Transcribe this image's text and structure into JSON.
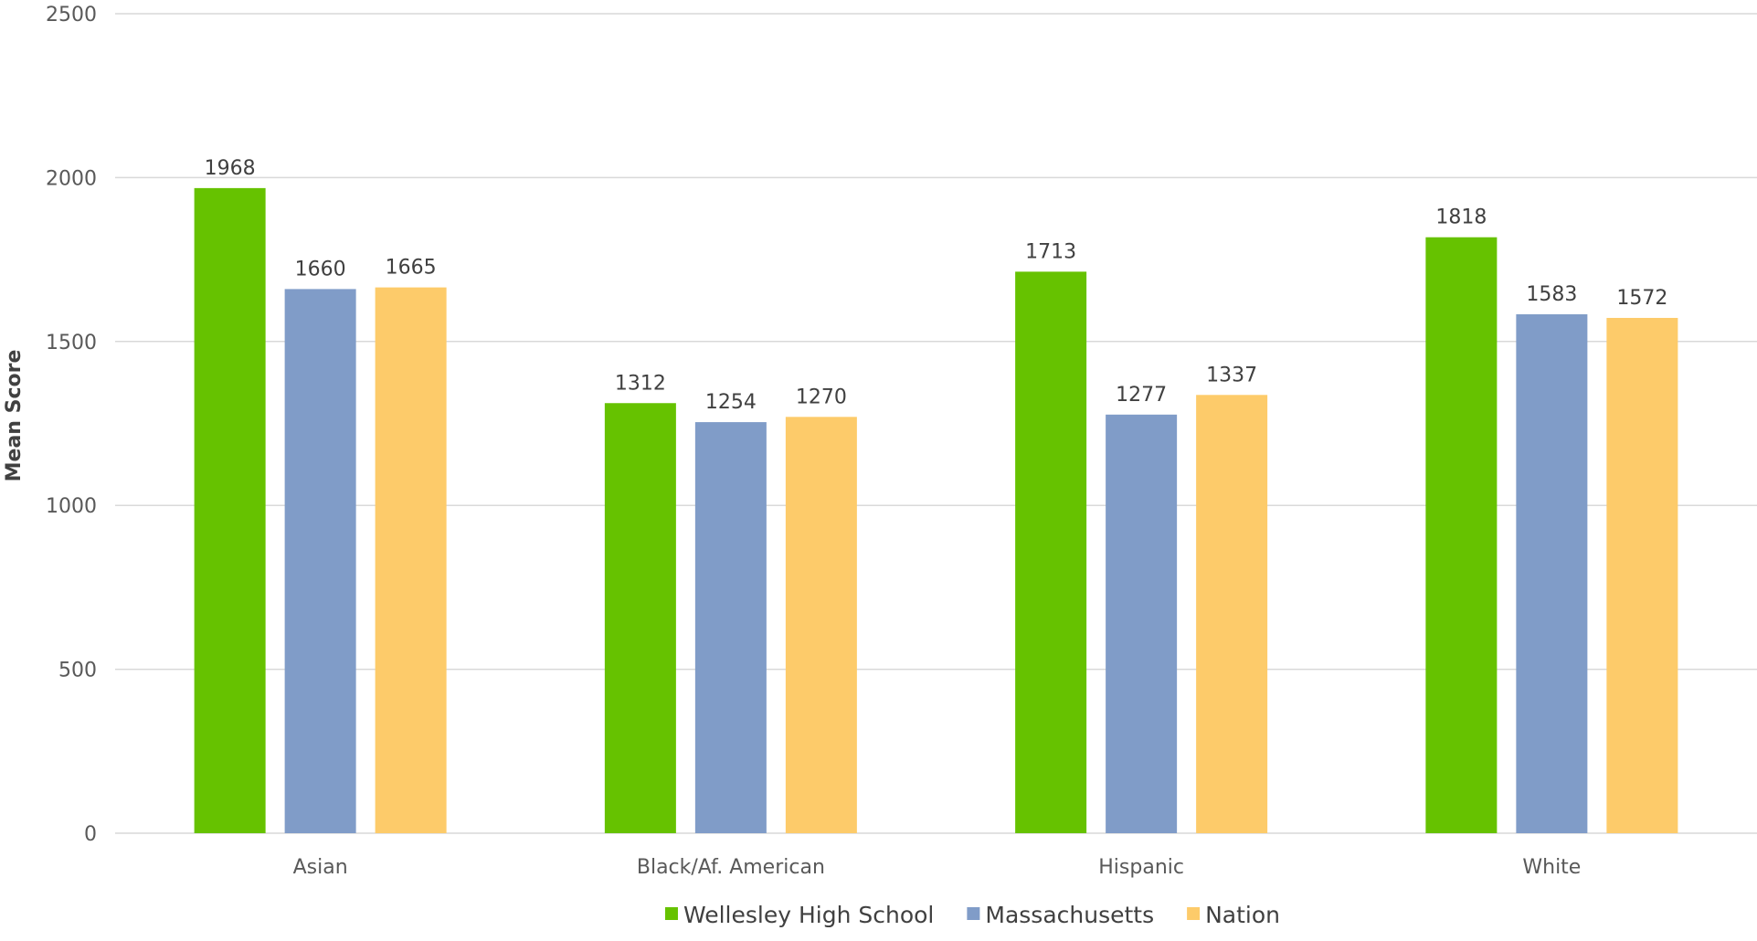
{
  "chart_data": {
    "type": "bar",
    "title": "",
    "xlabel": "",
    "ylabel": "Mean Score",
    "ylim": [
      0,
      2500
    ],
    "yticks": [
      0,
      500,
      1000,
      1500,
      2000,
      2500
    ],
    "categories": [
      "Asian",
      "Black/Af. American",
      "Hispanic",
      "White"
    ],
    "series": [
      {
        "name": "Wellesley High School",
        "color": "#66c200",
        "values": [
          1968,
          1312,
          1713,
          1818
        ]
      },
      {
        "name": "Massachusetts",
        "color": "#809cc8",
        "values": [
          1660,
          1254,
          1277,
          1583
        ]
      },
      {
        "name": "Nation",
        "color": "#fdcb6a",
        "values": [
          1665,
          1270,
          1337,
          1572
        ]
      }
    ],
    "grid": true,
    "legend_position": "bottom",
    "data_labels": true
  }
}
